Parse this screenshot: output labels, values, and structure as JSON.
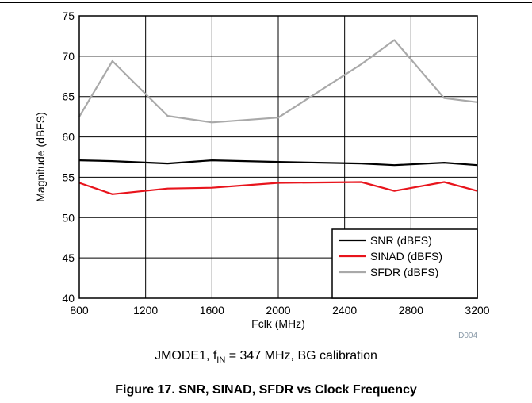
{
  "chart_data": {
    "type": "line",
    "xlabel": "Fclk (MHz)",
    "ylabel": "Magnitude (dBFS)",
    "xlim": [
      800,
      3200
    ],
    "ylim": [
      40,
      75
    ],
    "xticks": [
      800,
      1200,
      1600,
      2000,
      2400,
      2800,
      3200
    ],
    "yticks": [
      40,
      45,
      50,
      55,
      60,
      65,
      70,
      75
    ],
    "grid": true,
    "legend_position": "bottom-right",
    "series": [
      {
        "name": "SNR (dBFS)",
        "color": "#000000",
        "x": [
          800,
          1000,
          1333,
          1600,
          2000,
          2500,
          2700,
          3000,
          3200
        ],
        "y": [
          57.1,
          57.0,
          56.7,
          57.1,
          56.9,
          56.7,
          56.5,
          56.8,
          56.5
        ]
      },
      {
        "name": "SINAD (dBFS)",
        "color": "#e8141c",
        "x": [
          800,
          1000,
          1333,
          1600,
          2000,
          2500,
          2700,
          3000,
          3200
        ],
        "y": [
          54.3,
          52.9,
          53.6,
          53.7,
          54.3,
          54.4,
          53.3,
          54.4,
          53.3
        ]
      },
      {
        "name": "SFDR (dBFS)",
        "color": "#a9a9a9",
        "x": [
          800,
          1000,
          1333,
          1600,
          2000,
          2500,
          2700,
          3000,
          3200
        ],
        "y": [
          62.5,
          69.4,
          62.6,
          61.8,
          62.4,
          69.0,
          72.0,
          64.8,
          64.3
        ]
      }
    ],
    "code": "D004"
  },
  "caption": {
    "prefix": "JMODE1, f",
    "sub": "IN",
    "suffix": " = 347 MHz, BG calibration"
  },
  "figure_title": "Figure 17. SNR, SINAD, SFDR vs Clock Frequency"
}
